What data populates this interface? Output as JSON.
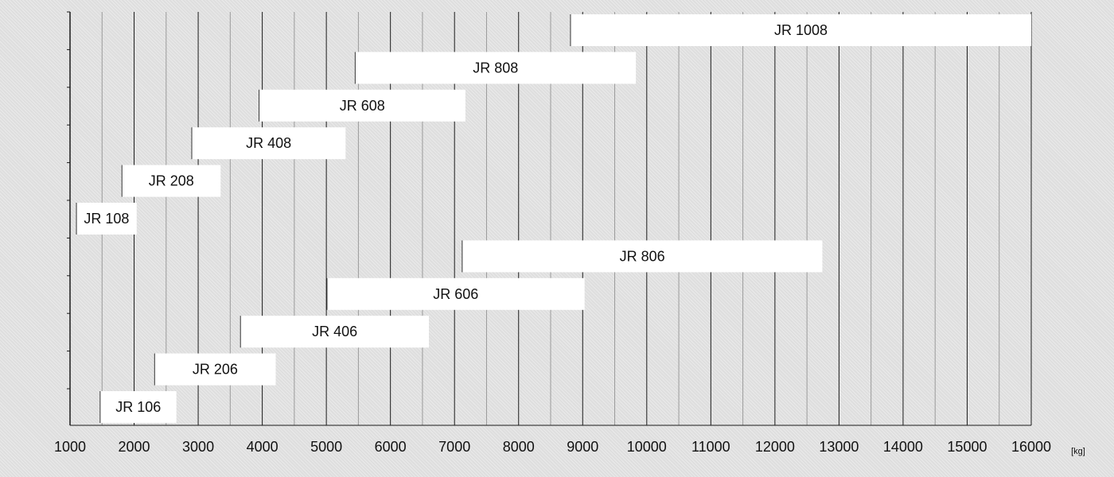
{
  "chart_data": {
    "type": "bar",
    "orientation": "horizontal-range",
    "x_unit": "[kg]",
    "xlim": [
      1000,
      16000
    ],
    "x_ticks": [
      1000,
      2000,
      3000,
      4000,
      5000,
      6000,
      7000,
      8000,
      9000,
      10000,
      11000,
      12000,
      13000,
      14000,
      15000,
      16000
    ],
    "grid": "vertical",
    "categories": [
      "JR 1008",
      "JR 808",
      "JR 608",
      "JR 408",
      "JR 208",
      "JR 108",
      "JR 806",
      "JR 606",
      "JR 406",
      "JR 206",
      "JR 106"
    ],
    "ranges": [
      [
        8810,
        16000
      ],
      [
        5450,
        9830
      ],
      [
        3950,
        7170
      ],
      [
        2900,
        5300
      ],
      [
        1810,
        3350
      ],
      [
        1100,
        2040
      ],
      [
        7120,
        12740
      ],
      [
        5010,
        9030
      ],
      [
        3660,
        6600
      ],
      [
        2320,
        4210
      ],
      [
        1470,
        2660
      ]
    ],
    "title": "",
    "xlabel": "",
    "ylabel": ""
  },
  "colors": {
    "bar_fill": "#ffffff",
    "grid_major": "#1a1a1a",
    "grid_minor": "#9a9a9a",
    "text": "#111111"
  }
}
